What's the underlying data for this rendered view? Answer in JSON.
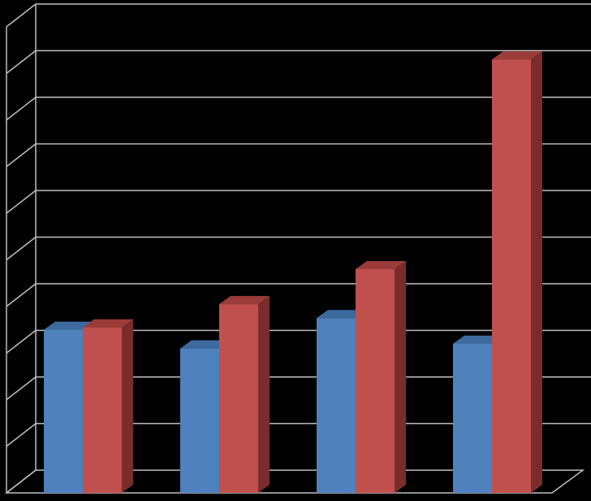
{
  "chart_data": {
    "type": "bar",
    "categories": [
      "",
      "",
      "",
      ""
    ],
    "series": [
      {
        "values": [
          3.5,
          3.1,
          3.75,
          3.2
        ]
      },
      {
        "values": [
          3.55,
          4.05,
          4.8,
          9.3
        ]
      }
    ],
    "colors": {
      "series_1": "#4f81bd",
      "series_1_top": "#3d6a9e",
      "series_2": "#c0504d",
      "series_2_top": "#9b3c3a",
      "series_2_side": "#7a2c2b",
      "grid": "#bfbfbf",
      "background": "#000000"
    },
    "ylim": [
      0,
      10
    ],
    "y_tick_step": 1,
    "grid": true,
    "legend": "none",
    "style": "3d-clustered-column"
  }
}
